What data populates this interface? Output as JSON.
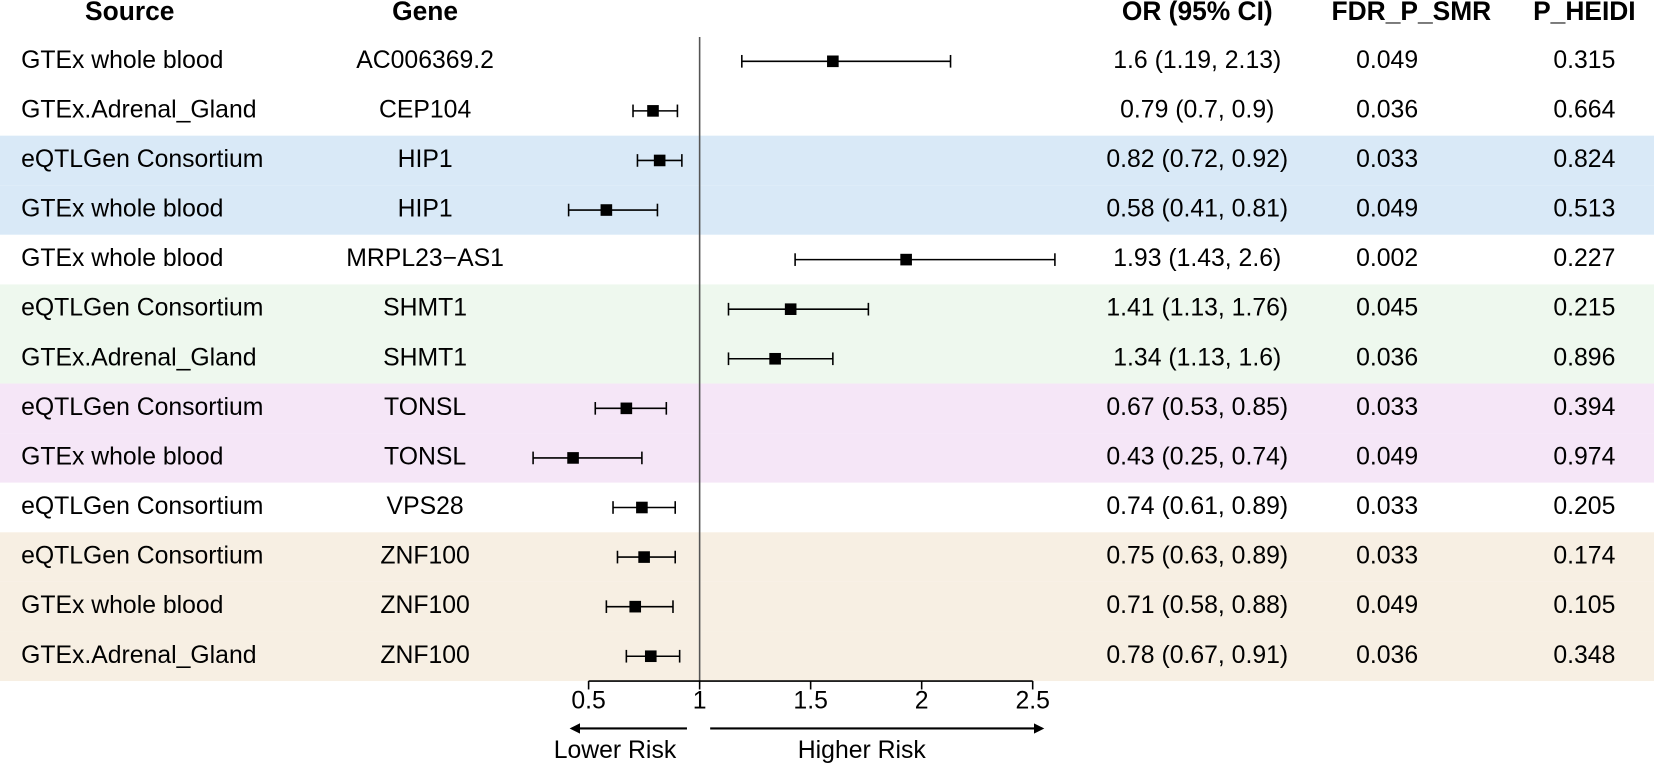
{
  "chart_data": {
    "type": "forest",
    "columns": [
      "Source",
      "Gene",
      "OR (95% CI)",
      "FDR_P_SMR",
      "P_HEIDI"
    ],
    "sources": [
      "GTEx whole blood",
      "GTEx.Adrenal_Gland",
      "eQTLGen Consortium",
      "GTEx whole blood",
      "GTEx whole blood",
      "eQTLGen Consortium",
      "GTEx.Adrenal_Gland",
      "eQTLGen Consortium",
      "GTEx whole blood",
      "eQTLGen Consortium",
      "eQTLGen Consortium",
      "GTEx whole blood",
      "GTEx.Adrenal_Gland"
    ],
    "genes": [
      "AC006369.2",
      "CEP104",
      "HIP1",
      "HIP1",
      "MRPL23−AS1",
      "SHMT1",
      "SHMT1",
      "TONSL",
      "TONSL",
      "VPS28",
      "ZNF100",
      "ZNF100",
      "ZNF100"
    ],
    "values": [
      1.6,
      0.79,
      0.82,
      0.58,
      1.93,
      1.41,
      1.34,
      0.67,
      0.43,
      0.74,
      0.75,
      0.71,
      0.78
    ],
    "lower": [
      1.19,
      0.7,
      0.72,
      0.41,
      1.43,
      1.13,
      1.13,
      0.53,
      0.25,
      0.61,
      0.63,
      0.58,
      0.67
    ],
    "upper": [
      2.13,
      0.9,
      0.92,
      0.81,
      2.6,
      1.76,
      1.6,
      0.85,
      0.74,
      0.89,
      0.89,
      0.88,
      0.91
    ],
    "value_labels": [
      "1.6 (1.19, 2.13)",
      "0.79 (0.7, 0.9)",
      "0.82 (0.72, 0.92)",
      "0.58 (0.41, 0.81)",
      "1.93 (1.43, 2.6)",
      "1.41 (1.13, 1.76)",
      "1.34 (1.13, 1.6)",
      "0.67 (0.53, 0.85)",
      "0.43 (0.25, 0.74)",
      "0.74 (0.61, 0.89)",
      "0.75 (0.63, 0.89)",
      "0.71 (0.58, 0.88)",
      "0.78 (0.67, 0.91)"
    ],
    "fdr_p_smr": [
      0.049,
      0.036,
      0.033,
      0.049,
      0.002,
      0.045,
      0.036,
      0.033,
      0.049,
      0.033,
      0.033,
      0.049,
      0.036
    ],
    "p_heidi": [
      0.315,
      0.664,
      0.824,
      0.513,
      0.227,
      0.215,
      0.896,
      0.394,
      0.974,
      0.205,
      0.174,
      0.105,
      0.348
    ],
    "row_colors": [
      "#ffffff",
      "#ffffff",
      "#d9e9f7",
      "#d9e9f7",
      "#ffffff",
      "#eef8ee",
      "#eef8ee",
      "#f5e6f7",
      "#f5e6f7",
      "#ffffff",
      "#f7efe3",
      "#f7efe3",
      "#f7efe3"
    ],
    "color": "#000000",
    "xlim": [
      0.5,
      2.5
    ],
    "xticks": [
      0.5,
      1,
      1.5,
      2,
      2.5
    ],
    "ref_line": 1,
    "arrow_labels": [
      "Lower Risk",
      "Higher Risk"
    ]
  }
}
